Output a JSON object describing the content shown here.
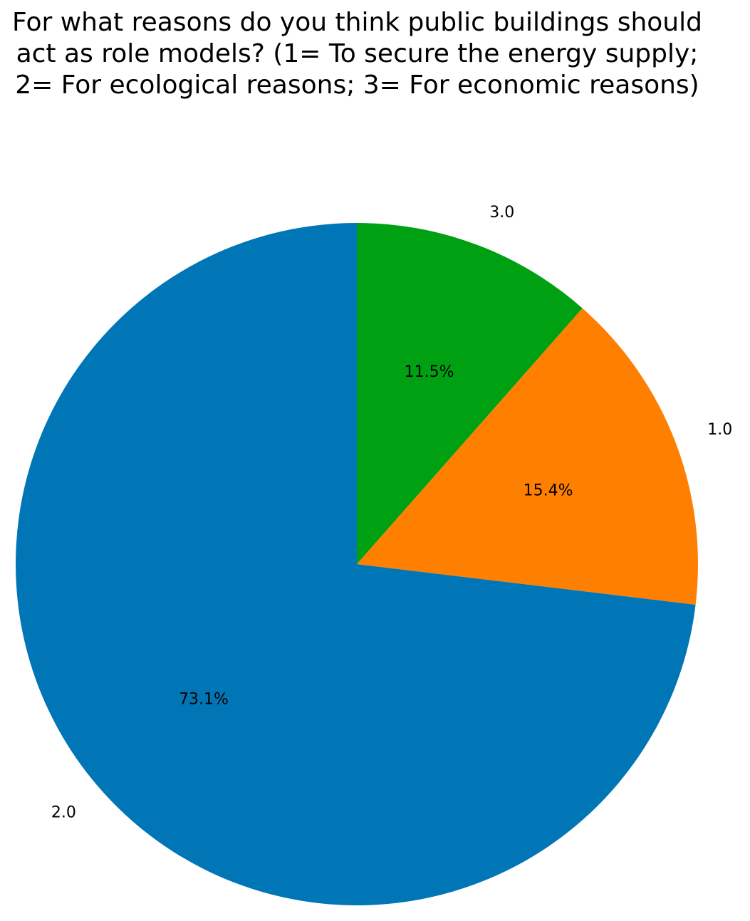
{
  "chart_data": {
    "type": "pie",
    "title": "For what reasons do you think public buildings should act as role models? (1= To secure the energy supply; 2= For ecological reasons; 3= For economic reasons)",
    "categories": [
      "3.0",
      "1.0",
      "2.0"
    ],
    "values": [
      11.5,
      15.4,
      73.1
    ],
    "value_labels": [
      "11.5%",
      "15.4%",
      "73.1%"
    ],
    "colors": [
      "#00a013",
      "#ff7f00",
      "#0076b6"
    ]
  }
}
